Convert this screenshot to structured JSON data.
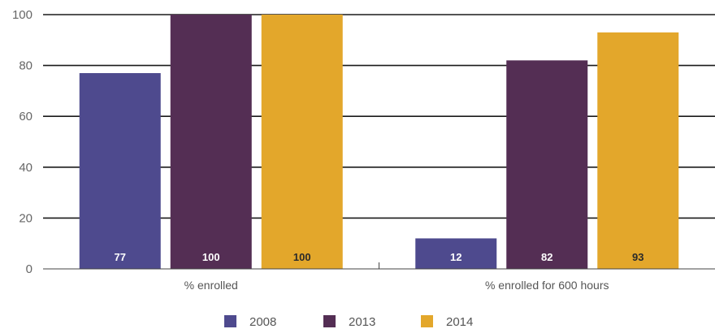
{
  "chart_data": {
    "type": "bar",
    "categories": [
      "% enrolled",
      "% enrolled for 600 hours"
    ],
    "series": [
      {
        "name": "2008",
        "values": [
          77,
          12
        ],
        "color": "#4e4a8e",
        "label_color": "#ffffff"
      },
      {
        "name": "2013",
        "values": [
          100,
          82
        ],
        "color": "#542e54",
        "label_color": "#ffffff"
      },
      {
        "name": "2014",
        "values": [
          100,
          93
        ],
        "color": "#e3a72b",
        "label_color": "#2a2a2a"
      }
    ],
    "yticks": [
      0,
      20,
      40,
      60,
      80,
      100
    ],
    "ylim": [
      0,
      100
    ],
    "grid": true,
    "legend_position": "bottom-center",
    "title": "",
    "xlabel": "",
    "ylabel": ""
  }
}
